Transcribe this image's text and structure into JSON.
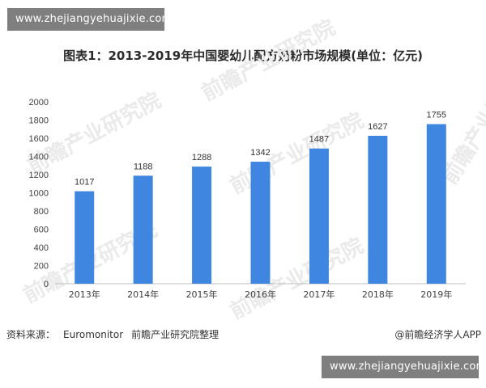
{
  "watermark_url": "www.zhejiangyehuajixie.com",
  "chart_data": {
    "type": "bar",
    "title": "图表1：2013-2019年中国婴幼儿配方奶粉市场规模(单位：亿元)",
    "categories": [
      "2013年",
      "2014年",
      "2015年",
      "2016年",
      "2017年",
      "2018年",
      "2019年"
    ],
    "values": [
      1017,
      1188,
      1288,
      1342,
      1487,
      1627,
      1755
    ],
    "yticks": [
      0,
      200,
      400,
      600,
      800,
      1000,
      1200,
      1400,
      1600,
      1800,
      2000
    ],
    "ylim": [
      0,
      2000
    ],
    "bar_color": "#3f86e0",
    "grid": false,
    "legend": "none"
  },
  "footer": {
    "source_label": "资料来源：",
    "source_name": "Euromonitor",
    "source_org": "前瞻产业研究院整理",
    "credit": "@前瞻经济学人APP"
  },
  "background_watermark": "前瞻产业研究院"
}
